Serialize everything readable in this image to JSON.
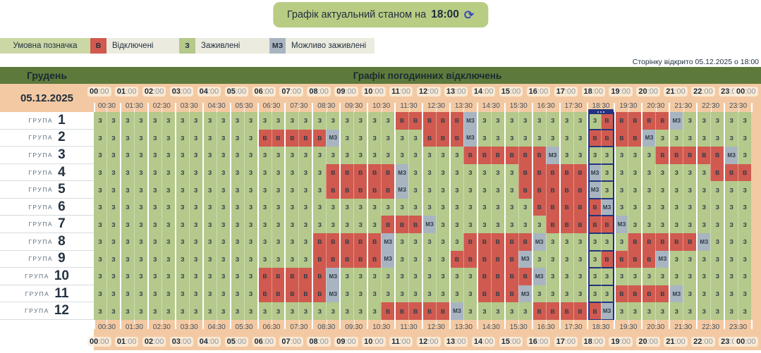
{
  "banner": {
    "label": "Графік актуальний станом на",
    "time": "18:00",
    "refresh_icon": "⟳"
  },
  "opened_note": "Сторінку відкрито 05.12.2025 о 18:00",
  "legend": {
    "title": "Умовна позначка",
    "items": [
      {
        "code": "В",
        "label": "Відключені",
        "color": "#d05a4f"
      },
      {
        "code": "З",
        "label": "Заживлені",
        "color": "#b4c98b"
      },
      {
        "code": "МЗ",
        "label": "Можливо заживлені",
        "color": "#a8b5c1"
      }
    ]
  },
  "schedule": {
    "month": "Грудень",
    "title": "Графік погодинних відключень",
    "date": "05.12.2025",
    "group_prefix": "ГРУПА",
    "hour_labels": [
      "00:00",
      "01:00",
      "02:00",
      "03:00",
      "04:00",
      "05:00",
      "06:00",
      "07:00",
      "08:00",
      "09:00",
      "10:00",
      "11:00",
      "12:00",
      "13:00",
      "14:00",
      "15:00",
      "16:00",
      "17:00",
      "18:00",
      "19:00",
      "20:00",
      "21:00",
      "22:00",
      "23:00",
      "00:00"
    ],
    "half_hour_labels": [
      "00:30",
      "01:30",
      "02:30",
      "03:30",
      "04:30",
      "05:30",
      "06:30",
      "07:30",
      "08:30",
      "09:30",
      "10:30",
      "11:30",
      "12:30",
      "13:30",
      "14:30",
      "15:30",
      "16:30",
      "17:30",
      "18:30",
      "19:30",
      "20:30",
      "21:30",
      "22:30",
      "23:30"
    ],
    "cell_codes": {
      "Z": "З",
      "V": "В",
      "M": "МЗ"
    },
    "current_hour_pair_index": 18,
    "groups": [
      {
        "number": "1",
        "slots": "ZZZZZZZZZZZZZZZZZZZZZZVVVVVMZZZZZZZZZVVVVVMZZZZZ"
      },
      {
        "number": "2",
        "slots": "ZZZZZZZZZZZZVVVVVMZZZZZZVVVMZZZZZZZZVVVVMZZZZZZZ"
      },
      {
        "number": "3",
        "slots": "ZZZZZZZZZZZZZZZZZZZZZZZZZZZVVVVVVMZZZZZZZVVVVVMZ"
      },
      {
        "number": "4",
        "slots": "ZZZZZZZZZZZZZZZZZVVVVVMZZZZZZZZVVVVVMZZZZZZZZVVV"
      },
      {
        "number": "5",
        "slots": "ZZZZZZZZZZZZZZZZZVVVVVMZZZZZZZZVVVVVMZZZZZZZZZZZ"
      },
      {
        "number": "6",
        "slots": "ZZZZZZZZZZZZZZZZZZZZZZZZZZZZZZZZVVVVVMZZZZZZZZZZ"
      },
      {
        "number": "7",
        "slots": "ZZZZZZZZZZZZZZZZZZZZZVVVMZZZZZZZZVVVVVMZZZZZZZZZ"
      },
      {
        "number": "8",
        "slots": "ZZZZZZZZZZZZZZZZVVVVVMZZZZZVVVVVMZZZZZZVVVVVMZZZ"
      },
      {
        "number": "9",
        "slots": "ZZZZZZZZZZZZZZZZVVVVVMZZZZVVVVVMZZZZZVVVVMZZZZZZ"
      },
      {
        "number": "10",
        "slots": "ZZZZZZZZZZZZVVVVVMZZZZZZZZZZVVVVMZZZZZZZZZZZZZZZ"
      },
      {
        "number": "11",
        "slots": "ZZZZZZZZZZZZVVVVVMZZZZZZZZZZVVVMZZZZZZVVVVMZZZZZ"
      },
      {
        "number": "12",
        "slots": "ZZZZZZZZZZZZZZZZZZZZZVVVVVMZZZZZVVVVVMZZZZZZZZZZ"
      }
    ]
  },
  "colors": {
    "off_red": "#d05a4f",
    "on_green": "#b4c98b",
    "maybe_gray": "#a8b5c1",
    "peach": "#f3c9a3",
    "olive": "#5d7a3c",
    "current_navy": "#23337f",
    "banner_green": "#b9cc84"
  }
}
